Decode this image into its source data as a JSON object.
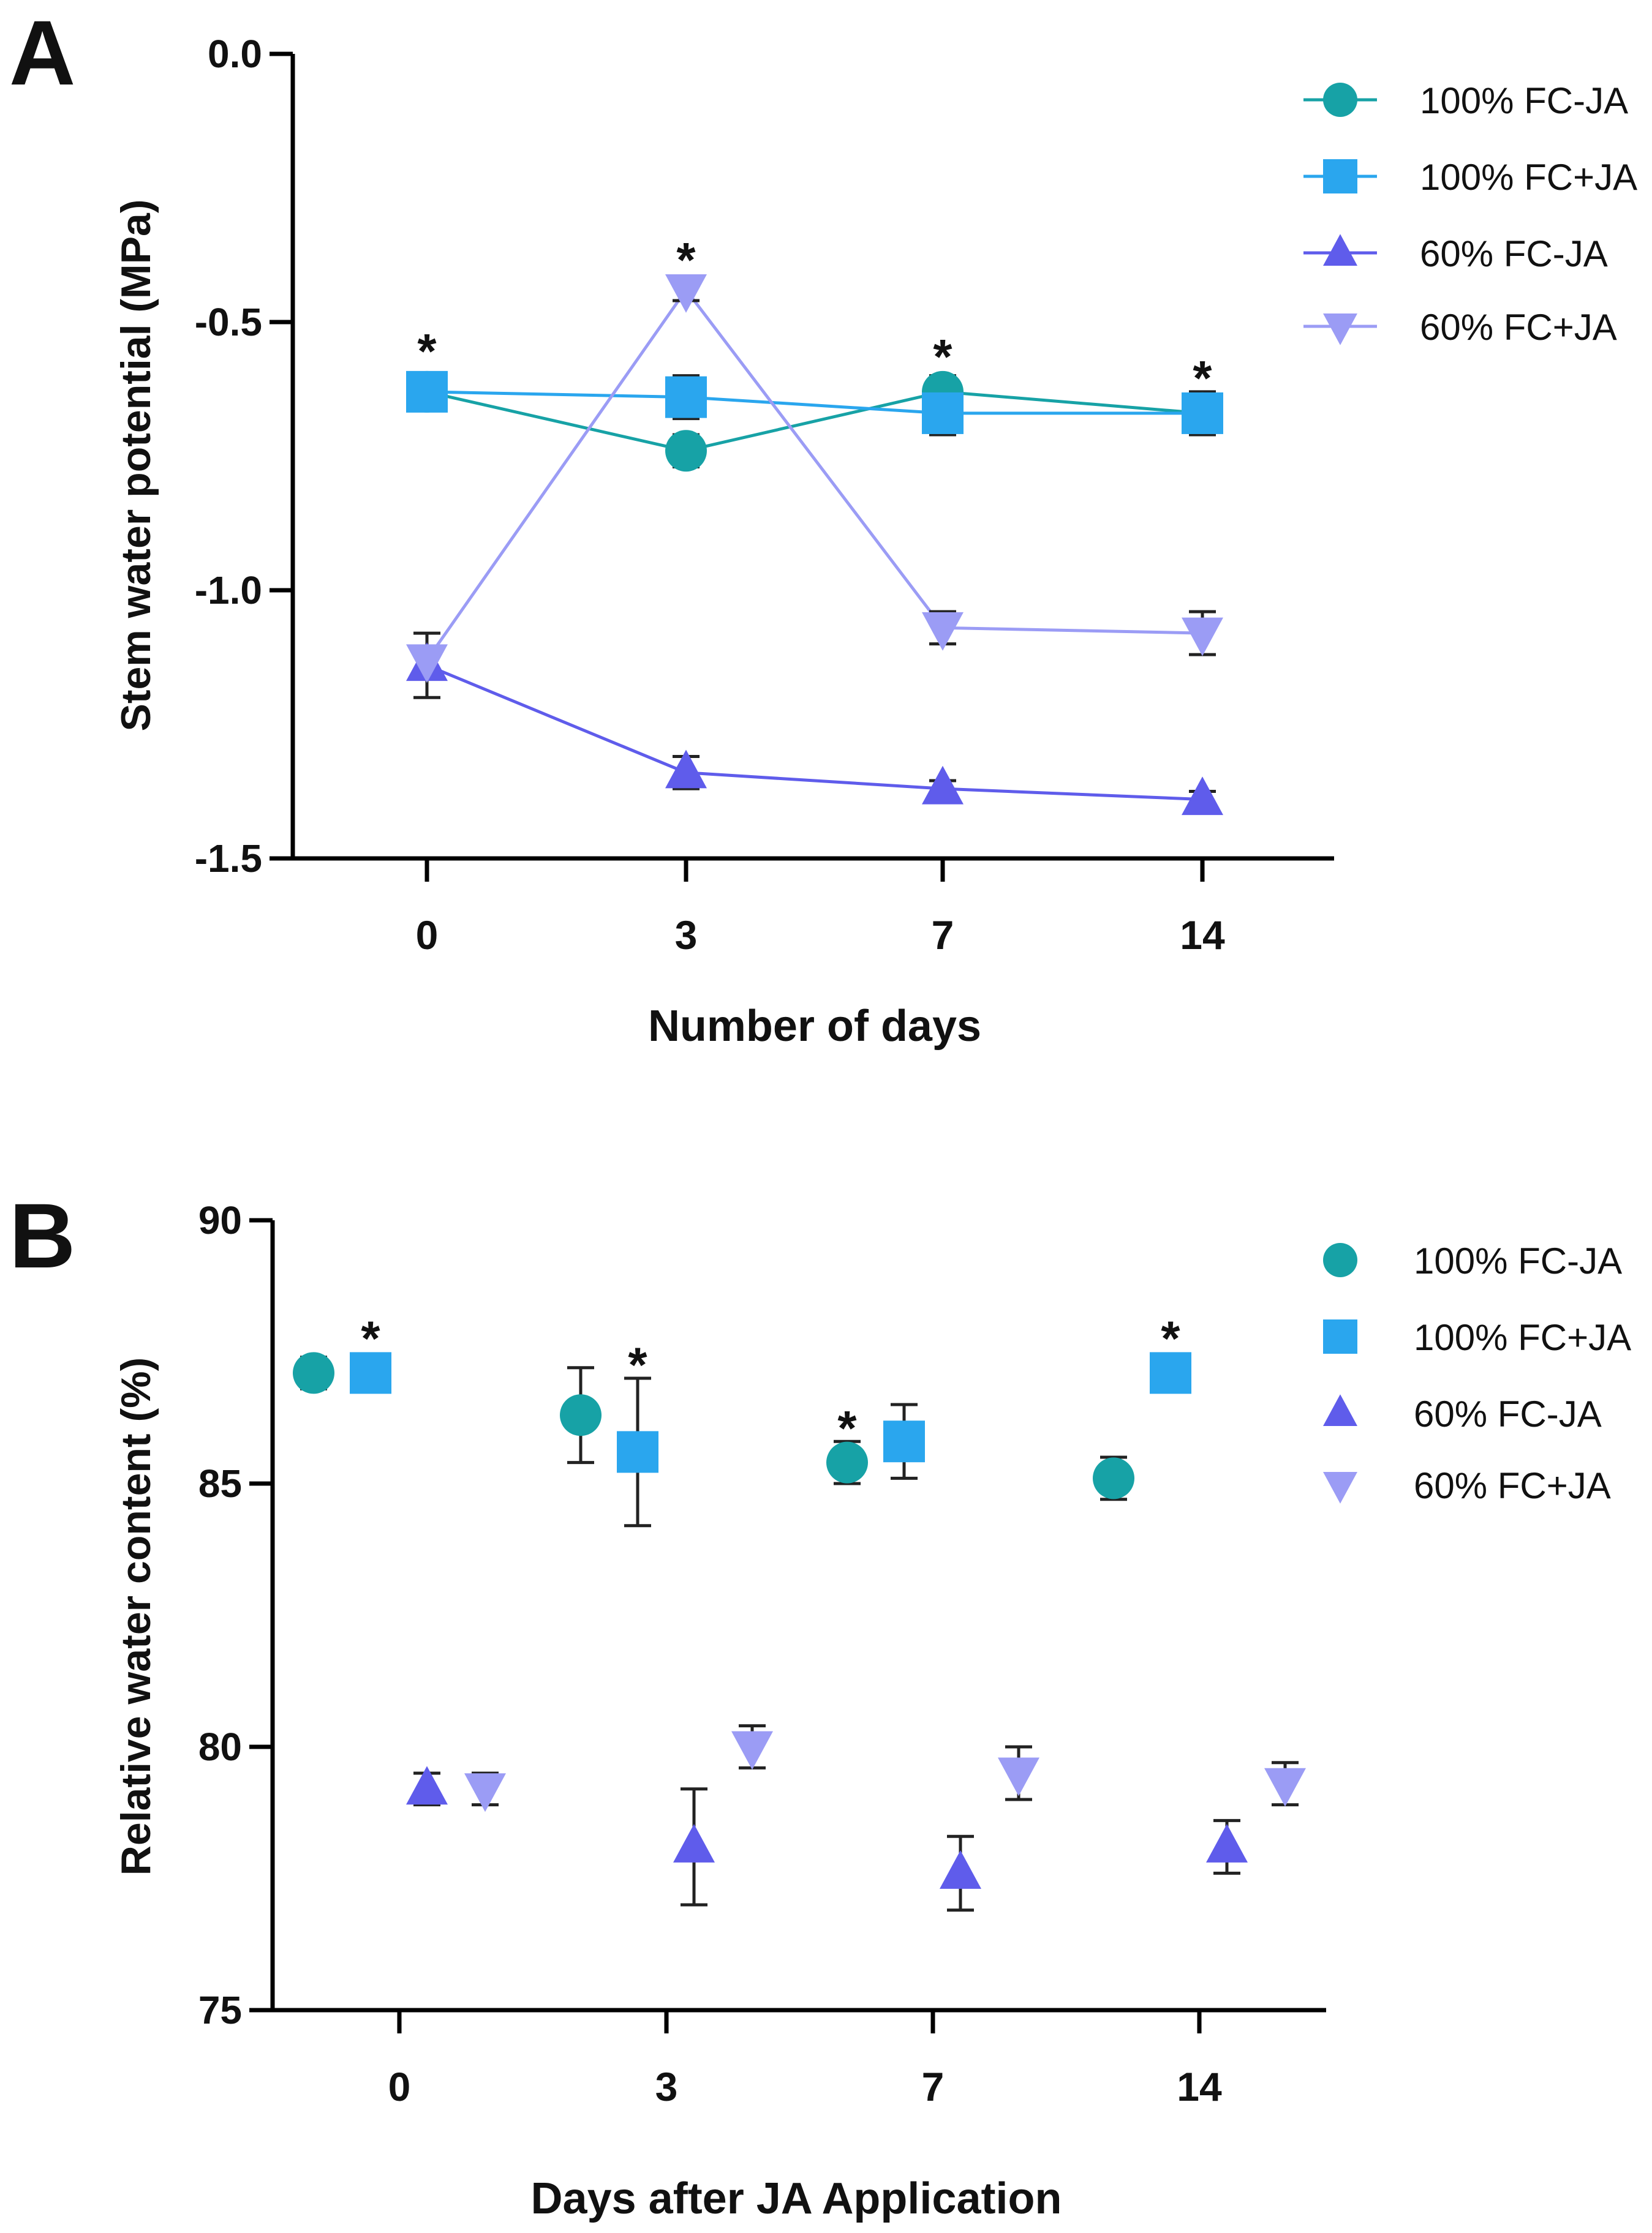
{
  "chart_data": [
    {
      "panel_label": "A",
      "type": "line",
      "title": "",
      "xlabel": "Number of days",
      "ylabel": "Stem water potential (MPa)",
      "categories": [
        "0",
        "3",
        "7",
        "14"
      ],
      "ylim": [
        -1.5,
        0.0
      ],
      "yticks": [
        0.0,
        -0.5,
        -1.0,
        -1.5
      ],
      "ytick_labels": [
        "0.0",
        "-0.5",
        "-1.0",
        "-1.5"
      ],
      "legend_position": "top-right",
      "series": [
        {
          "name": "100% FC-JA",
          "marker": "circle",
          "color": "#17a2a6",
          "values": [
            -0.63,
            -0.74,
            -0.63,
            -0.67
          ],
          "errors": [
            0.03,
            0.03,
            0.03,
            0.03
          ]
        },
        {
          "name": "100% FC+JA",
          "marker": "square",
          "color": "#2aa6ee",
          "values": [
            -0.63,
            -0.64,
            -0.67,
            -0.67
          ],
          "errors": [
            0.03,
            0.04,
            0.04,
            0.04
          ]
        },
        {
          "name": "60% FC-JA",
          "marker": "triangle-up",
          "color": "#5f5ceb",
          "values": [
            -1.14,
            -1.34,
            -1.37,
            -1.39
          ],
          "errors": [
            0.06,
            0.03,
            0.015,
            0.015
          ]
        },
        {
          "name": "60% FC+JA",
          "marker": "triangle-down",
          "color": "#9b9cf5",
          "values": [
            -1.13,
            -0.44,
            -1.07,
            -1.08
          ],
          "errors": [
            0.02,
            0.02,
            0.03,
            0.04
          ]
        }
      ],
      "annotations": [
        {
          "text": "*",
          "x": "0",
          "y": -0.54
        },
        {
          "text": "*",
          "x": "3",
          "y": -0.37
        },
        {
          "text": "*",
          "x": "7",
          "y": -0.55
        },
        {
          "text": "*",
          "x": "14",
          "y": -0.59
        }
      ]
    },
    {
      "panel_label": "B",
      "type": "scatter",
      "title": "",
      "xlabel": "Days after JA Application",
      "ylabel": "Relative water content (%)",
      "categories": [
        "0",
        "3",
        "7",
        "14"
      ],
      "ylim": [
        75,
        90
      ],
      "yticks": [
        90,
        85,
        80,
        75
      ],
      "ytick_labels": [
        "90",
        "85",
        "80",
        "75"
      ],
      "legend_position": "top-right",
      "series": [
        {
          "name": "100% FC-JA",
          "marker": "circle",
          "color": "#17a2a6",
          "values": [
            87.1,
            86.3,
            85.4,
            85.1
          ],
          "errors": [
            0.3,
            0.9,
            0.4,
            0.4
          ]
        },
        {
          "name": "100% FC+JA",
          "marker": "square",
          "color": "#2aa6ee",
          "values": [
            87.1,
            85.6,
            85.8,
            87.1
          ],
          "errors": [
            0.3,
            1.4,
            0.7,
            0.3
          ]
        },
        {
          "name": "60% FC-JA",
          "marker": "triangle-up",
          "color": "#5f5ceb",
          "values": [
            79.2,
            78.1,
            77.6,
            78.1
          ],
          "errors": [
            0.3,
            1.1,
            0.7,
            0.5
          ]
        },
        {
          "name": "60% FC+JA",
          "marker": "triangle-down",
          "color": "#9b9cf5",
          "values": [
            79.2,
            80.0,
            79.5,
            79.3
          ],
          "errors": [
            0.3,
            0.4,
            0.5,
            0.4
          ]
        }
      ],
      "annotations": [
        {
          "text": "*",
          "x": "0",
          "y": 87.9
        },
        {
          "text": "*",
          "x": "3",
          "y": 87.4
        },
        {
          "text": "*",
          "x": "7",
          "y": 86.2
        },
        {
          "text": "*",
          "x": "14",
          "y": 87.9
        }
      ]
    }
  ]
}
